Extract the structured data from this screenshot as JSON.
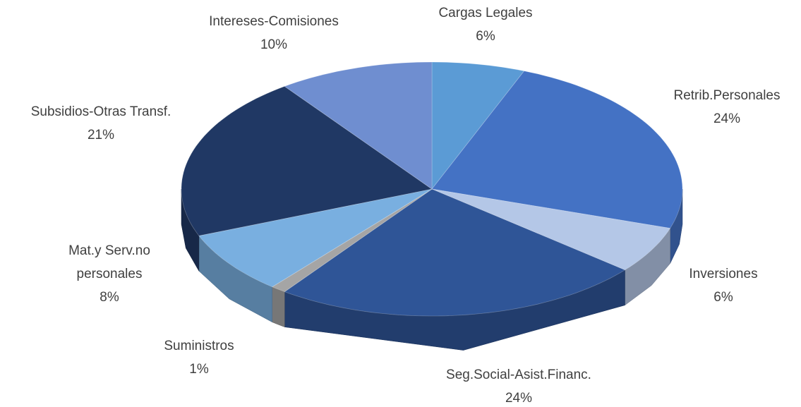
{
  "chart_data": {
    "type": "pie",
    "categories": [
      "Cargas Legales",
      "Retrib.Personales",
      "Inversiones",
      "Seg.Social-Asist.Financ.",
      "Suministros",
      "Mat.y Serv.no personales",
      "Subsidios-Otras Transf.",
      "Intereses-Comisiones"
    ],
    "values": [
      6,
      24,
      6,
      24,
      1,
      8,
      21,
      10
    ],
    "value_labels": [
      "6%",
      "24%",
      "6%",
      "24%",
      "1%",
      "8%",
      "21%",
      "10%"
    ],
    "colors": [
      "#5b9bd5",
      "#4472c4",
      "#b4c7e7",
      "#2f5597",
      "#a5a5a5",
      "#79afe0",
      "#203864",
      "#6f8ed0"
    ]
  }
}
